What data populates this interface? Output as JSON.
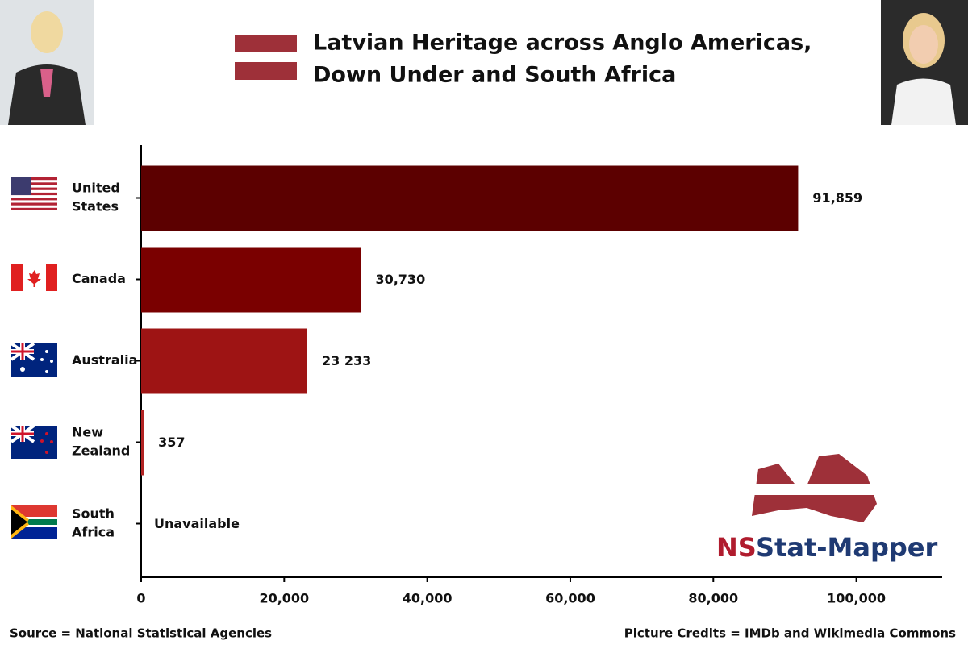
{
  "chart_data": {
    "type": "hbar",
    "title_lines": [
      "Latvian Heritage across Anglo Americas,",
      "Down Under and South Africa"
    ],
    "categories": [
      [
        "United",
        "States"
      ],
      [
        "Canada"
      ],
      [
        "Australia"
      ],
      [
        "New",
        "Zealand"
      ],
      [
        "South",
        "Africa"
      ]
    ],
    "values": [
      91859,
      30730,
      23233,
      357,
      null
    ],
    "value_labels": [
      "91,859",
      "30,730",
      "23 233",
      "357",
      "Unavailable"
    ],
    "colors": [
      "#5c0000",
      "#7a0000",
      "#9e1414",
      "#b22222",
      "#b22222"
    ],
    "xlim": [
      0,
      112000
    ],
    "xticks": [
      0,
      {
        "value": 20000,
        "label": "20,000"
      },
      {
        "value": 40000,
        "label": "40,000"
      },
      {
        "value": 60000,
        "label": "60,000"
      },
      {
        "value": 80000,
        "label": "80,000"
      },
      {
        "value": 100000,
        "label": "100,000"
      }
    ],
    "source": "Source = National Statistical Agencies",
    "credits": "Picture Credits = IMDb and Wikimedia Commons",
    "logo": [
      "NS",
      "Stat-Mapper"
    ]
  }
}
